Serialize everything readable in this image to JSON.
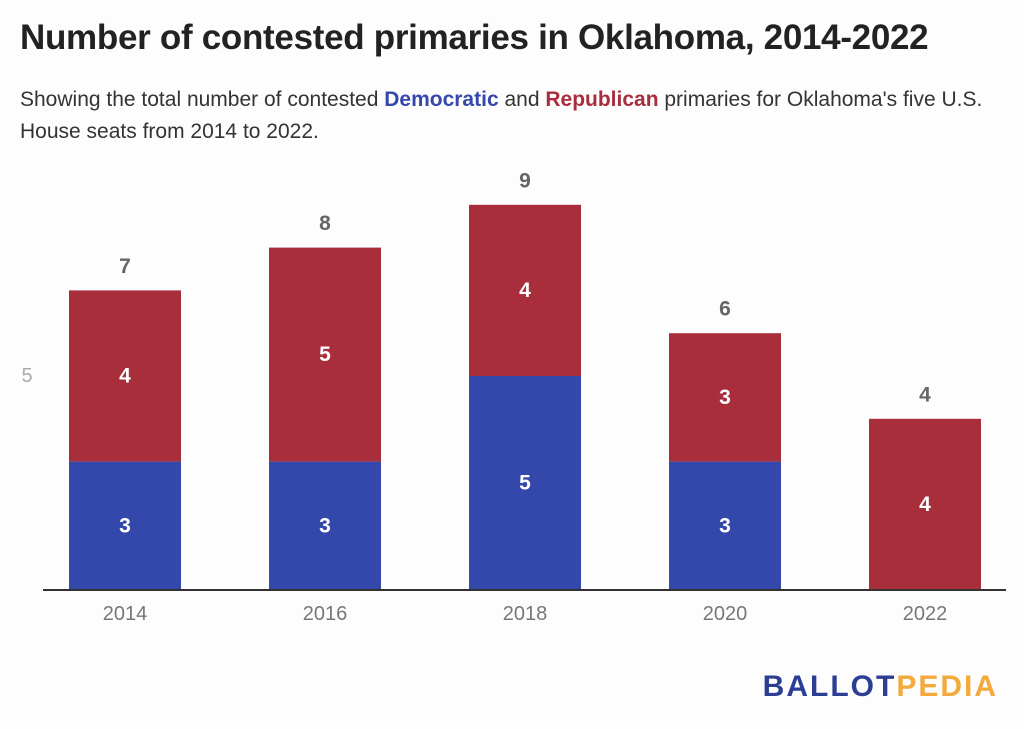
{
  "title": "Number of contested primaries in Oklahoma, 2014-2022",
  "subtitle": {
    "prefix": "Showing the total number of contested ",
    "dem": "Democratic",
    "mid": " and ",
    "rep": "Republican",
    "suffix": " primaries for Oklahoma's five U.S. House seats from 2014 to 2022."
  },
  "logo": {
    "part1": "BALLOT",
    "part2": "PEDIA"
  },
  "colors": {
    "democratic": "#3447aa",
    "republican": "#a82e3c",
    "axis": "#333333",
    "tick": "#777777"
  },
  "chart_data": {
    "type": "bar",
    "stacked": true,
    "categories": [
      "2014",
      "2016",
      "2018",
      "2020",
      "2022"
    ],
    "series": [
      {
        "name": "Democratic",
        "values": [
          3,
          3,
          5,
          3,
          0
        ]
      },
      {
        "name": "Republican",
        "values": [
          4,
          5,
          4,
          3,
          4
        ]
      }
    ],
    "totals": [
      7,
      8,
      9,
      6,
      4
    ],
    "ylim": [
      0,
      9
    ],
    "y_ticks": [
      5
    ],
    "grid": false,
    "title": "Number of contested primaries in Oklahoma, 2014-2022",
    "xlabel": "",
    "ylabel": ""
  }
}
